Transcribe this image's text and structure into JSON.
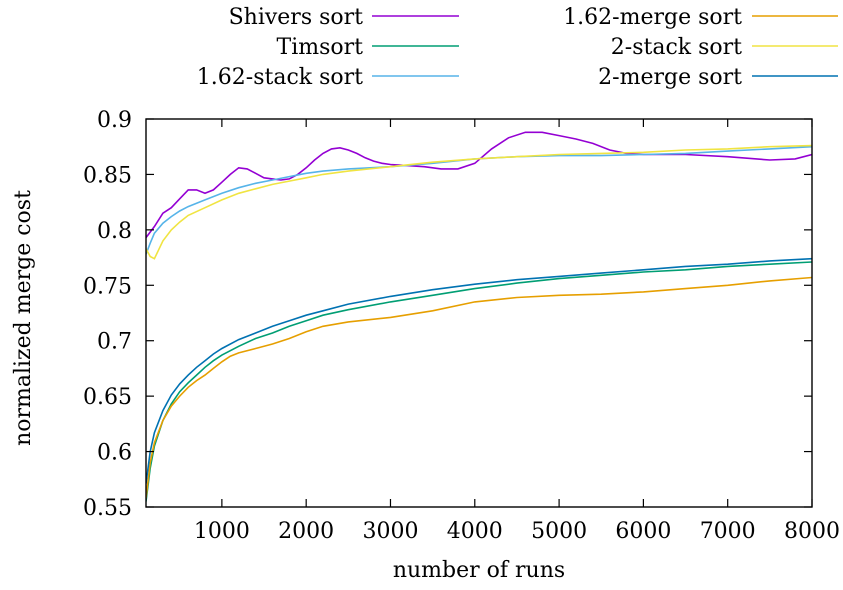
{
  "chart_data": {
    "type": "line",
    "title": "",
    "xlabel": "number of runs",
    "ylabel": "normalized merge cost",
    "xlim": [
      100,
      8000
    ],
    "ylim": [
      0.55,
      0.9
    ],
    "grid": false,
    "legend_placement": "top (outside, two columns)",
    "x_ticks": [
      1000,
      2000,
      3000,
      4000,
      5000,
      6000,
      7000,
      8000
    ],
    "x_tick_labels": [
      "1000",
      "2000",
      "3000",
      "4000",
      "5000",
      "6000",
      "7000",
      "8000"
    ],
    "y_ticks": [
      0.55,
      0.6,
      0.65,
      0.7,
      0.75,
      0.8,
      0.85,
      0.9
    ],
    "y_tick_labels": [
      "0.55",
      "0.6",
      "0.65",
      "0.7",
      "0.75",
      "0.8",
      "0.85",
      "0.9"
    ],
    "series": [
      {
        "name": "Shivers sort",
        "color": "#9400d3",
        "points": [
          [
            100,
            0.793
          ],
          [
            200,
            0.803
          ],
          [
            300,
            0.815
          ],
          [
            400,
            0.82
          ],
          [
            500,
            0.828
          ],
          [
            600,
            0.836
          ],
          [
            700,
            0.836
          ],
          [
            800,
            0.833
          ],
          [
            900,
            0.836
          ],
          [
            1000,
            0.843
          ],
          [
            1100,
            0.85
          ],
          [
            1200,
            0.856
          ],
          [
            1300,
            0.855
          ],
          [
            1400,
            0.851
          ],
          [
            1500,
            0.847
          ],
          [
            1600,
            0.846
          ],
          [
            1700,
            0.845
          ],
          [
            1800,
            0.846
          ],
          [
            1900,
            0.85
          ],
          [
            2000,
            0.856
          ],
          [
            2100,
            0.863
          ],
          [
            2200,
            0.869
          ],
          [
            2300,
            0.873
          ],
          [
            2400,
            0.874
          ],
          [
            2500,
            0.872
          ],
          [
            2600,
            0.869
          ],
          [
            2700,
            0.865
          ],
          [
            2800,
            0.862
          ],
          [
            2900,
            0.86
          ],
          [
            3000,
            0.859
          ],
          [
            3200,
            0.858
          ],
          [
            3400,
            0.857
          ],
          [
            3600,
            0.855
          ],
          [
            3800,
            0.855
          ],
          [
            4000,
            0.86
          ],
          [
            4200,
            0.873
          ],
          [
            4400,
            0.883
          ],
          [
            4600,
            0.888
          ],
          [
            4800,
            0.888
          ],
          [
            5000,
            0.885
          ],
          [
            5200,
            0.882
          ],
          [
            5400,
            0.878
          ],
          [
            5600,
            0.872
          ],
          [
            5800,
            0.869
          ],
          [
            6000,
            0.868
          ],
          [
            6500,
            0.868
          ],
          [
            7000,
            0.866
          ],
          [
            7500,
            0.863
          ],
          [
            7800,
            0.864
          ],
          [
            8000,
            0.868
          ]
        ]
      },
      {
        "name": "Timsort",
        "color": "#009e73",
        "points": [
          [
            100,
            0.555
          ],
          [
            150,
            0.585
          ],
          [
            200,
            0.605
          ],
          [
            300,
            0.628
          ],
          [
            400,
            0.643
          ],
          [
            500,
            0.654
          ],
          [
            600,
            0.662
          ],
          [
            700,
            0.669
          ],
          [
            800,
            0.676
          ],
          [
            900,
            0.682
          ],
          [
            1000,
            0.687
          ],
          [
            1200,
            0.695
          ],
          [
            1400,
            0.702
          ],
          [
            1600,
            0.707
          ],
          [
            1800,
            0.713
          ],
          [
            2000,
            0.718
          ],
          [
            2200,
            0.723
          ],
          [
            2500,
            0.728
          ],
          [
            3000,
            0.735
          ],
          [
            3500,
            0.741
          ],
          [
            4000,
            0.747
          ],
          [
            4500,
            0.752
          ],
          [
            5000,
            0.756
          ],
          [
            5500,
            0.759
          ],
          [
            6000,
            0.762
          ],
          [
            6500,
            0.764
          ],
          [
            7000,
            0.767
          ],
          [
            7500,
            0.769
          ],
          [
            8000,
            0.771
          ]
        ]
      },
      {
        "name": "1.62-stack sort",
        "color": "#56b4e9",
        "points": [
          [
            100,
            0.778
          ],
          [
            150,
            0.788
          ],
          [
            200,
            0.797
          ],
          [
            300,
            0.806
          ],
          [
            400,
            0.812
          ],
          [
            500,
            0.817
          ],
          [
            600,
            0.821
          ],
          [
            800,
            0.827
          ],
          [
            1000,
            0.833
          ],
          [
            1200,
            0.838
          ],
          [
            1400,
            0.842
          ],
          [
            1600,
            0.845
          ],
          [
            1800,
            0.848
          ],
          [
            2000,
            0.851
          ],
          [
            2200,
            0.853
          ],
          [
            2500,
            0.855
          ],
          [
            3000,
            0.857
          ],
          [
            3500,
            0.86
          ],
          [
            4000,
            0.864
          ],
          [
            4500,
            0.866
          ],
          [
            5000,
            0.867
          ],
          [
            5500,
            0.867
          ],
          [
            6000,
            0.868
          ],
          [
            6500,
            0.869
          ],
          [
            7000,
            0.871
          ],
          [
            7500,
            0.873
          ],
          [
            8000,
            0.875
          ]
        ]
      },
      {
        "name": "1.62-merge sort",
        "color": "#e69f00",
        "points": [
          [
            100,
            0.558
          ],
          [
            150,
            0.59
          ],
          [
            200,
            0.608
          ],
          [
            300,
            0.628
          ],
          [
            400,
            0.641
          ],
          [
            500,
            0.65
          ],
          [
            600,
            0.658
          ],
          [
            700,
            0.664
          ],
          [
            800,
            0.669
          ],
          [
            900,
            0.675
          ],
          [
            1000,
            0.681
          ],
          [
            1100,
            0.686
          ],
          [
            1200,
            0.689
          ],
          [
            1400,
            0.693
          ],
          [
            1600,
            0.697
          ],
          [
            1800,
            0.702
          ],
          [
            2000,
            0.708
          ],
          [
            2200,
            0.713
          ],
          [
            2500,
            0.717
          ],
          [
            3000,
            0.721
          ],
          [
            3500,
            0.727
          ],
          [
            4000,
            0.735
          ],
          [
            4500,
            0.739
          ],
          [
            5000,
            0.741
          ],
          [
            5500,
            0.742
          ],
          [
            6000,
            0.744
          ],
          [
            6500,
            0.747
          ],
          [
            7000,
            0.75
          ],
          [
            7500,
            0.754
          ],
          [
            8000,
            0.757
          ]
        ]
      },
      {
        "name": "2-stack sort",
        "color": "#f0e442",
        "points": [
          [
            100,
            0.783
          ],
          [
            150,
            0.776
          ],
          [
            200,
            0.774
          ],
          [
            300,
            0.79
          ],
          [
            400,
            0.8
          ],
          [
            500,
            0.807
          ],
          [
            600,
            0.813
          ],
          [
            800,
            0.82
          ],
          [
            1000,
            0.827
          ],
          [
            1200,
            0.833
          ],
          [
            1400,
            0.837
          ],
          [
            1600,
            0.841
          ],
          [
            1800,
            0.844
          ],
          [
            2000,
            0.847
          ],
          [
            2200,
            0.85
          ],
          [
            2500,
            0.853
          ],
          [
            3000,
            0.857
          ],
          [
            3500,
            0.861
          ],
          [
            4000,
            0.864
          ],
          [
            4500,
            0.866
          ],
          [
            5000,
            0.868
          ],
          [
            5500,
            0.869
          ],
          [
            6000,
            0.87
          ],
          [
            6500,
            0.872
          ],
          [
            7000,
            0.873
          ],
          [
            7500,
            0.875
          ],
          [
            8000,
            0.876
          ]
        ]
      },
      {
        "name": "2-merge sort",
        "color": "#0072b2",
        "points": [
          [
            100,
            0.571
          ],
          [
            150,
            0.6
          ],
          [
            200,
            0.617
          ],
          [
            300,
            0.637
          ],
          [
            400,
            0.651
          ],
          [
            500,
            0.661
          ],
          [
            600,
            0.669
          ],
          [
            700,
            0.676
          ],
          [
            800,
            0.682
          ],
          [
            900,
            0.688
          ],
          [
            1000,
            0.693
          ],
          [
            1200,
            0.701
          ],
          [
            1400,
            0.707
          ],
          [
            1600,
            0.713
          ],
          [
            1800,
            0.718
          ],
          [
            2000,
            0.723
          ],
          [
            2200,
            0.727
          ],
          [
            2500,
            0.733
          ],
          [
            3000,
            0.74
          ],
          [
            3500,
            0.746
          ],
          [
            4000,
            0.751
          ],
          [
            4500,
            0.755
          ],
          [
            5000,
            0.758
          ],
          [
            5500,
            0.761
          ],
          [
            6000,
            0.764
          ],
          [
            6500,
            0.767
          ],
          [
            7000,
            0.769
          ],
          [
            7500,
            0.772
          ],
          [
            8000,
            0.774
          ]
        ]
      }
    ]
  }
}
